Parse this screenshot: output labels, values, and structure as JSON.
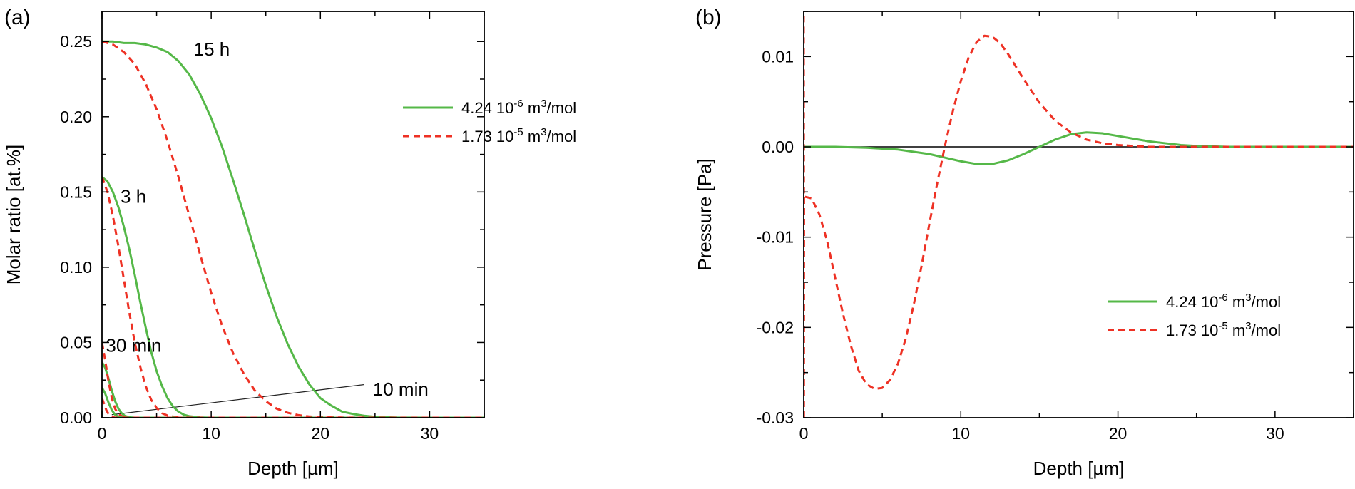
{
  "chart_data": [
    {
      "panel": "a",
      "panel_label": "(a)",
      "type": "line",
      "title": "",
      "xlabel": "Depth [µm]",
      "ylabel": "Molar ratio [at.%]",
      "xlim": [
        0,
        35
      ],
      "ylim": [
        0,
        0.27
      ],
      "xticks": [
        0,
        10,
        20,
        30
      ],
      "yticks": [
        0.0,
        0.05,
        0.1,
        0.15,
        0.2,
        0.25
      ],
      "xtick_labels": [
        "0",
        "10",
        "20",
        "30"
      ],
      "ytick_labels": [
        "0.00",
        "0.05",
        "0.10",
        "0.15",
        "0.20",
        "0.25"
      ],
      "legend": [
        {
          "label": "4.24 10",
          "exp": "-6",
          "unit": " m",
          "unit_exp": "3",
          "suffix": "/mol",
          "color": "#55b848",
          "dash": "solid"
        },
        {
          "label": "1.73 10",
          "exp": "-5",
          "unit": " m",
          "unit_exp": "3",
          "suffix": "/mol",
          "color": "#ee3124",
          "dash": "dashed"
        }
      ],
      "annotations": [
        {
          "text": "15 h",
          "x": 8.4,
          "y": 0.245
        },
        {
          "text": "3 h",
          "x": 1.7,
          "y": 0.147
        },
        {
          "text": "30 min",
          "x": 0.35,
          "y": 0.048
        },
        {
          "text": "10 min",
          "x": 24.8,
          "y": 0.019
        }
      ],
      "pointer_line": {
        "from": [
          0.9,
          0.002
        ],
        "to": [
          24.0,
          0.022
        ]
      },
      "series": [
        {
          "name": "15 h, 4.24e-6",
          "style": 0,
          "x": [
            0,
            1,
            2,
            3,
            4,
            5,
            6,
            7,
            8,
            9,
            10,
            11,
            12,
            13,
            14,
            15,
            16,
            17,
            18,
            19,
            20,
            21,
            22,
            23,
            24,
            25,
            26,
            27,
            30,
            35
          ],
          "y": [
            0.25,
            0.25,
            0.249,
            0.249,
            0.248,
            0.246,
            0.243,
            0.237,
            0.228,
            0.215,
            0.199,
            0.18,
            0.158,
            0.135,
            0.111,
            0.088,
            0.067,
            0.049,
            0.034,
            0.022,
            0.013,
            0.008,
            0.004,
            0.0025,
            0.0013,
            0.0006,
            0.0003,
            0.0001,
            0,
            0
          ]
        },
        {
          "name": "15 h, 1.73e-5",
          "style": 1,
          "x": [
            0,
            1,
            2,
            3,
            4,
            5,
            6,
            7,
            8,
            9,
            10,
            11,
            12,
            13,
            14,
            15,
            16,
            17,
            18,
            19,
            20,
            22,
            25,
            35
          ],
          "y": [
            0.25,
            0.248,
            0.243,
            0.235,
            0.222,
            0.205,
            0.184,
            0.16,
            0.134,
            0.108,
            0.083,
            0.061,
            0.043,
            0.029,
            0.018,
            0.011,
            0.006,
            0.0033,
            0.0017,
            0.0008,
            0.0004,
            0.0001,
            0,
            0
          ]
        },
        {
          "name": "3 h, 4.24e-6",
          "style": 0,
          "x": [
            0,
            0.5,
            1,
            1.5,
            2,
            2.5,
            3,
            3.5,
            4,
            4.5,
            5,
            5.5,
            6,
            6.5,
            7,
            7.5,
            8,
            9,
            10,
            12,
            35
          ],
          "y": [
            0.16,
            0.157,
            0.15,
            0.14,
            0.127,
            0.112,
            0.095,
            0.077,
            0.06,
            0.044,
            0.031,
            0.021,
            0.013,
            0.0075,
            0.004,
            0.002,
            0.001,
            0.0002,
            0,
            0,
            0
          ]
        },
        {
          "name": "3 h, 1.73e-5",
          "style": 1,
          "x": [
            0,
            0.5,
            1,
            1.5,
            2,
            2.5,
            3,
            3.5,
            4,
            4.5,
            5,
            5.5,
            6,
            7,
            8,
            10,
            35
          ],
          "y": [
            0.16,
            0.15,
            0.134,
            0.114,
            0.092,
            0.07,
            0.05,
            0.034,
            0.021,
            0.012,
            0.0065,
            0.003,
            0.0014,
            0.0002,
            0,
            0,
            0
          ]
        },
        {
          "name": "30 min, 4.24e-6",
          "style": 0,
          "x": [
            0,
            0.3,
            0.6,
            0.9,
            1.2,
            1.5,
            1.8,
            2.1,
            2.5,
            3,
            35
          ],
          "y": [
            0.037,
            0.033,
            0.026,
            0.018,
            0.011,
            0.006,
            0.003,
            0.0012,
            0.0003,
            0,
            0
          ]
        },
        {
          "name": "30 min, 1.73e-5",
          "style": 1,
          "x": [
            0,
            0.3,
            0.6,
            0.9,
            1.2,
            1.5,
            2,
            2.5,
            35
          ],
          "y": [
            0.05,
            0.038,
            0.024,
            0.013,
            0.006,
            0.0022,
            0.0004,
            0,
            0
          ]
        },
        {
          "name": "10 min, 4.24e-6",
          "style": 0,
          "x": [
            0,
            0.3,
            0.6,
            0.9,
            1.2,
            1.5,
            2,
            35
          ],
          "y": [
            0.02,
            0.016,
            0.01,
            0.005,
            0.002,
            0.0006,
            0,
            0
          ]
        },
        {
          "name": "10 min, 1.73e-5",
          "style": 1,
          "x": [
            0,
            0.2,
            0.4,
            0.6,
            0.8,
            1.0,
            1.3,
            35
          ],
          "y": [
            0.013,
            0.009,
            0.005,
            0.0025,
            0.001,
            0.0003,
            0,
            0
          ]
        }
      ]
    },
    {
      "panel": "b",
      "panel_label": "(b)",
      "type": "line",
      "title": "",
      "xlabel": "Depth [µm]",
      "ylabel": "Pressure [Pa]",
      "xlim": [
        0,
        35
      ],
      "ylim": [
        -0.03,
        0.015
      ],
      "xticks": [
        0,
        10,
        20,
        30
      ],
      "yticks": [
        -0.03,
        -0.02,
        -0.01,
        0.0,
        0.01
      ],
      "xtick_labels": [
        "0",
        "10",
        "20",
        "30"
      ],
      "ytick_labels": [
        "-0.03",
        "-0.02",
        "-0.01",
        "0.00",
        "0.01"
      ],
      "zero_line": true,
      "legend": [
        {
          "label": "4.24 10",
          "exp": "-6",
          "unit": " m",
          "unit_exp": "3",
          "suffix": "/mol",
          "color": "#55b848",
          "dash": "solid"
        },
        {
          "label": "1.73 10",
          "exp": "-5",
          "unit": " m",
          "unit_exp": "3",
          "suffix": "/mol",
          "color": "#ee3124",
          "dash": "dashed"
        }
      ],
      "series": [
        {
          "name": "4.24 10-6 m3/mol",
          "style": 0,
          "x": [
            0,
            2,
            4,
            6,
            8,
            9,
            10,
            11,
            12,
            13,
            14,
            15,
            16,
            17,
            18,
            19,
            20,
            21,
            22,
            23,
            24,
            25,
            27,
            30,
            35
          ],
          "y": [
            0,
            0,
            -0.0001,
            -0.0003,
            -0.0008,
            -0.0012,
            -0.0016,
            -0.0019,
            -0.0019,
            -0.0015,
            -0.0008,
            0,
            0.0008,
            0.0014,
            0.0016,
            0.0015,
            0.0012,
            0.0009,
            0.0006,
            0.0004,
            0.0002,
            0.0001,
            0,
            0,
            0
          ]
        },
        {
          "name": "1.73 10-5 m3/mol",
          "style": 1,
          "x": [
            0,
            0.01,
            0.5,
            1,
            1.5,
            2,
            2.5,
            3,
            3.5,
            4,
            4.5,
            5,
            5.5,
            6,
            6.5,
            7,
            7.5,
            8,
            8.5,
            9,
            9.5,
            10,
            10.5,
            11,
            11.5,
            12,
            12.5,
            13,
            13.5,
            14,
            15,
            16,
            17,
            18,
            19,
            20,
            21,
            22,
            23,
            25,
            30,
            35
          ],
          "y": [
            0.0145,
            -0.0055,
            -0.0057,
            -0.0075,
            -0.0105,
            -0.0145,
            -0.0185,
            -0.022,
            -0.0248,
            -0.0263,
            -0.0268,
            -0.0267,
            -0.0258,
            -0.024,
            -0.0212,
            -0.0175,
            -0.0132,
            -0.0085,
            -0.004,
            0.0002,
            0.004,
            0.0073,
            0.0099,
            0.0116,
            0.0123,
            0.0122,
            0.0115,
            0.0103,
            0.0089,
            0.0075,
            0.0049,
            0.0029,
            0.0016,
            0.0008,
            0.0004,
            0.0002,
            0.0001,
            0,
            0,
            0,
            0,
            0
          ]
        },
        {
          "name": "1.73 10-5 m3/mol near-surface spike",
          "style": 1,
          "x": [
            0.01,
            0.02
          ],
          "y": [
            -0.03,
            -0.0055
          ]
        }
      ]
    }
  ],
  "styles": [
    {
      "color": "#55b848",
      "dash": ""
    },
    {
      "color": "#ee3124",
      "dash": "9,6"
    }
  ]
}
